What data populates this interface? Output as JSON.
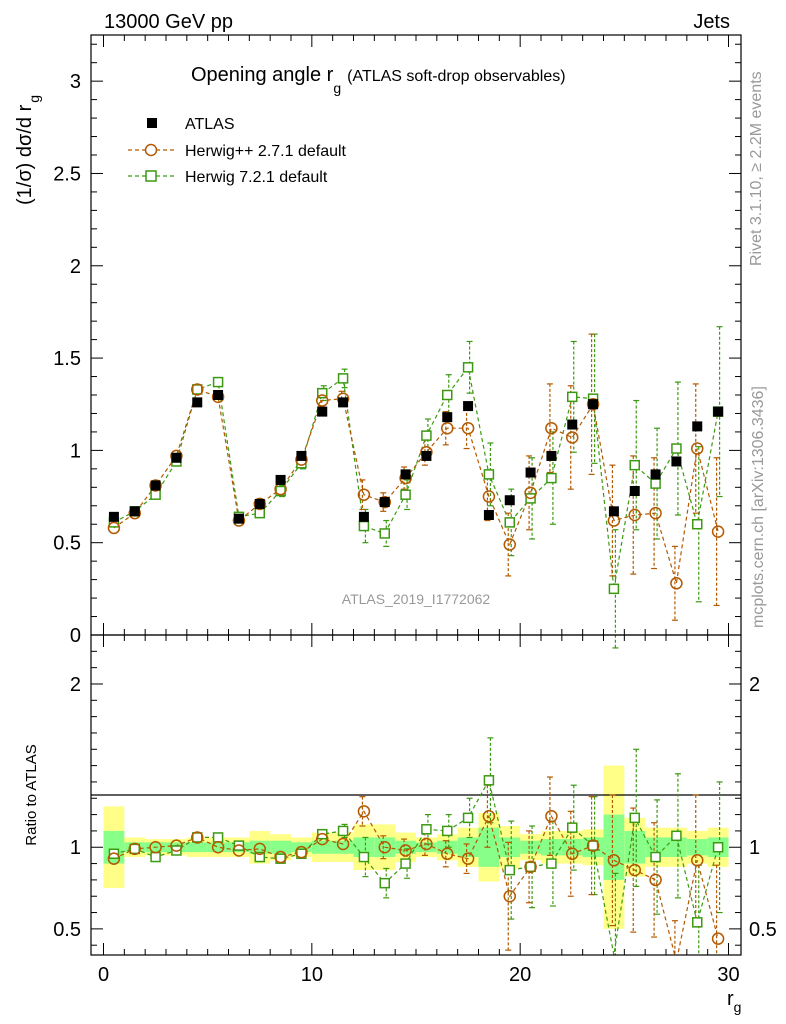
{
  "header": {
    "left": "13000 GeV pp",
    "right": "Jets"
  },
  "side_labels": {
    "rivet": "Rivet 3.1.10, ≥ 2.2M events",
    "mcplots": "mcplots.cern.ch [arXiv:1306.3436]"
  },
  "colors": {
    "atlas": "#000000",
    "herwigpp": "#b35900",
    "herwig7": "#3c9a12",
    "band_yellow": "#ffff88",
    "band_green": "#88ff88"
  },
  "chart_data": [
    {
      "type": "scatter",
      "title_main": "Opening angle r",
      "title_sub": "g",
      "title_note": "(ATLAS soft-drop observables)",
      "ylabel": "(1/σ) dσ/d r",
      "ylabel_sub": "g",
      "watermark": "ATLAS_2019_I1772062",
      "xlim": [
        -0.6,
        30.6
      ],
      "ylim": [
        0,
        3.25
      ],
      "ytick_labels": [
        "0",
        "0.5",
        "1",
        "1.5",
        "2",
        "2.5",
        "3"
      ],
      "legend_position": "top-left",
      "x": [
        0.5,
        1.5,
        2.5,
        3.5,
        4.5,
        5.5,
        6.5,
        7.5,
        8.5,
        9.5,
        10.5,
        11.5,
        12.5,
        13.5,
        14.5,
        15.5,
        16.5,
        17.5,
        18.5,
        19.5,
        20.5,
        21.5,
        22.5,
        23.5,
        24.5,
        25.5,
        26.5,
        27.5,
        28.5,
        29.5
      ],
      "series": [
        {
          "name": "ATLAS",
          "style": "data",
          "values": [
            0.64,
            0.67,
            0.81,
            0.96,
            1.26,
            1.3,
            0.63,
            0.71,
            0.84,
            0.97,
            1.21,
            1.26,
            0.64,
            0.72,
            0.87,
            0.97,
            1.18,
            1.24,
            0.65,
            0.73,
            0.88,
            0.97,
            1.14,
            1.25,
            0.67,
            0.78,
            0.87,
            0.94,
            1.13,
            1.21
          ]
        },
        {
          "name": "Herwig++ 2.7.1 default",
          "style": "circle",
          "values": [
            0.58,
            0.66,
            0.81,
            0.97,
            1.33,
            1.29,
            0.62,
            0.71,
            0.79,
            0.95,
            1.27,
            1.28,
            0.76,
            0.72,
            0.85,
            0.99,
            1.12,
            1.12,
            0.75,
            0.49,
            0.77,
            1.12,
            1.07,
            1.25,
            0.62,
            0.65,
            0.66,
            0.28,
            1.01,
            0.56
          ],
          "errors": [
            0.02,
            0.02,
            0.02,
            0.02,
            0.02,
            0.02,
            0.02,
            0.02,
            0.02,
            0.02,
            0.03,
            0.04,
            0.08,
            0.05,
            0.06,
            0.07,
            0.09,
            0.11,
            0.13,
            0.17,
            0.2,
            0.24,
            0.28,
            0.38,
            0.3,
            0.32,
            0.3,
            0.2,
            0.35,
            0.4
          ]
        },
        {
          "name": "Herwig 7.2.1 default",
          "style": "square",
          "values": [
            0.61,
            0.67,
            0.76,
            0.94,
            1.33,
            1.37,
            0.64,
            0.66,
            0.78,
            0.93,
            1.31,
            1.39,
            0.59,
            0.55,
            0.76,
            1.08,
            1.3,
            1.45,
            0.87,
            0.61,
            0.74,
            0.85,
            1.29,
            1.28,
            0.25,
            0.92,
            0.82,
            1.01,
            0.6,
            1.21
          ],
          "errors": [
            0.02,
            0.02,
            0.02,
            0.02,
            0.02,
            0.02,
            0.02,
            0.02,
            0.03,
            0.03,
            0.04,
            0.05,
            0.09,
            0.07,
            0.08,
            0.09,
            0.11,
            0.14,
            0.17,
            0.18,
            0.22,
            0.25,
            0.3,
            0.35,
            0.32,
            0.35,
            0.3,
            0.36,
            0.42,
            0.46
          ]
        }
      ]
    },
    {
      "type": "scatter",
      "ylabel": "Ratio to ATLAS",
      "xlabel": "r",
      "xlabel_sub": "g",
      "xlim": [
        -0.6,
        30.6
      ],
      "ylim": [
        0.34,
        2.3
      ],
      "xtick_labels": [
        "0",
        "10",
        "20",
        "30"
      ],
      "ytick_labels": [
        "0.5",
        "1",
        "2"
      ],
      "x": [
        0.5,
        1.5,
        2.5,
        3.5,
        4.5,
        5.5,
        6.5,
        7.5,
        8.5,
        9.5,
        10.5,
        11.5,
        12.5,
        13.5,
        14.5,
        15.5,
        16.5,
        17.5,
        18.5,
        19.5,
        20.5,
        21.5,
        22.5,
        23.5,
        24.5,
        25.5,
        26.5,
        27.5,
        28.5,
        29.5
      ],
      "band_yellow": [
        0.25,
        0.06,
        0.05,
        0.05,
        0.06,
        0.06,
        0.06,
        0.1,
        0.08,
        0.06,
        0.09,
        0.09,
        0.14,
        0.14,
        0.09,
        0.06,
        0.08,
        0.12,
        0.21,
        0.13,
        0.08,
        0.1,
        0.1,
        0.11,
        0.5,
        0.18,
        0.12,
        0.12,
        0.1,
        0.12
      ],
      "band_green": [
        0.1,
        0.03,
        0.03,
        0.03,
        0.03,
        0.03,
        0.03,
        0.04,
        0.04,
        0.03,
        0.04,
        0.04,
        0.06,
        0.06,
        0.04,
        0.03,
        0.04,
        0.06,
        0.12,
        0.06,
        0.04,
        0.05,
        0.05,
        0.06,
        0.2,
        0.1,
        0.06,
        0.06,
        0.05,
        0.06
      ],
      "series": [
        {
          "name": "Herwig++ 2.7.1 default",
          "style": "circle",
          "values": [
            0.93,
            0.99,
            1.0,
            1.01,
            1.06,
            1.0,
            0.98,
            0.99,
            0.94,
            0.97,
            1.05,
            1.02,
            1.22,
            1.0,
            0.98,
            1.02,
            0.96,
            0.93,
            1.19,
            0.7,
            0.88,
            1.19,
            0.96,
            1.01,
            0.92,
            0.86,
            0.8,
            0.3,
            0.92,
            0.44
          ],
          "errors": [
            0.03,
            0.03,
            0.03,
            0.03,
            0.02,
            0.02,
            0.03,
            0.03,
            0.03,
            0.03,
            0.03,
            0.03,
            0.09,
            0.07,
            0.07,
            0.07,
            0.08,
            0.09,
            0.19,
            0.33,
            0.22,
            0.24,
            0.26,
            0.3,
            0.4,
            0.38,
            0.35,
            0.25,
            0.4,
            0.45
          ]
        },
        {
          "name": "Herwig 7.2.1 default",
          "style": "square",
          "values": [
            0.96,
            0.99,
            0.94,
            0.98,
            1.06,
            1.06,
            1.01,
            0.94,
            0.93,
            0.96,
            1.08,
            1.1,
            0.94,
            0.78,
            0.9,
            1.11,
            1.1,
            1.18,
            1.41,
            0.86,
            0.88,
            0.9,
            1.12,
            1.01,
            0.34,
            1.18,
            0.94,
            1.07,
            0.54,
            1.0
          ],
          "errors": [
            0.03,
            0.03,
            0.03,
            0.03,
            0.02,
            0.02,
            0.03,
            0.03,
            0.03,
            0.03,
            0.03,
            0.04,
            0.12,
            0.09,
            0.09,
            0.09,
            0.1,
            0.12,
            0.26,
            0.3,
            0.25,
            0.26,
            0.26,
            0.3,
            0.5,
            0.42,
            0.35,
            0.38,
            0.35,
            0.4
          ]
        }
      ]
    }
  ]
}
